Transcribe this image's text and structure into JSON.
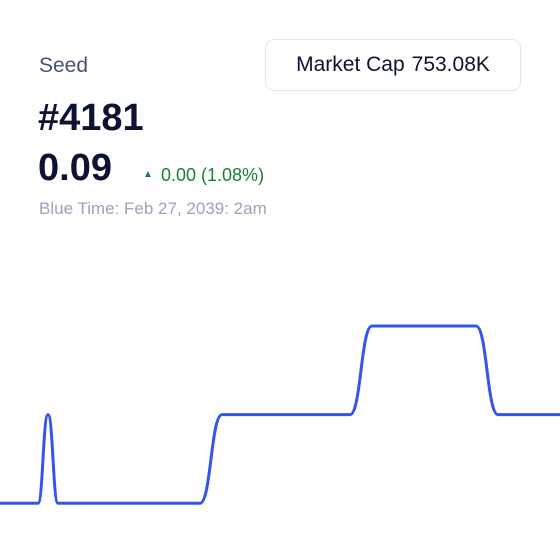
{
  "header": {
    "name": "Seed",
    "id": "#4181",
    "price": "0.09",
    "change": "0.00 (1.08%)",
    "time": "Blue Time: Feb 27, 2039: 2am"
  },
  "market_cap": {
    "label": "Market Cap",
    "value": "753.08K"
  },
  "chart_data": {
    "type": "line",
    "x": [
      0,
      38,
      48,
      58,
      200,
      222,
      350,
      372,
      476,
      498,
      560
    ],
    "xlim": [
      0,
      560
    ],
    "series": [
      {
        "color": "#3355ee",
        "values": [
          0,
          0,
          1,
          0,
          0,
          1,
          1,
          2,
          2,
          1,
          1
        ]
      }
    ],
    "ylim": [
      -0.64,
      2.97
    ]
  }
}
